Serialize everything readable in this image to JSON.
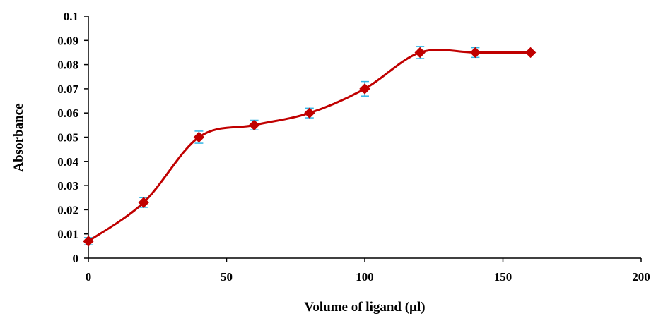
{
  "chart_data": {
    "type": "line",
    "title": "",
    "xlabel": "Volume of ligand (µl)",
    "ylabel": "Absorbance",
    "xlim": [
      0,
      200
    ],
    "ylim": [
      0,
      0.1
    ],
    "x_ticks": [
      "0",
      "50",
      "100",
      "150",
      "200"
    ],
    "y_ticks": [
      "0",
      "0.01",
      "0.02",
      "0.03",
      "0.04",
      "0.05",
      "0.06",
      "0.07",
      "0.08",
      "0.09",
      "0.1"
    ],
    "grid": false,
    "legend": "none",
    "smooth": true,
    "series": [
      {
        "color": "#c00000",
        "marker": "diamond",
        "x": [
          0,
          20,
          40,
          60,
          80,
          100,
          120,
          140,
          160
        ],
        "y": [
          0.007,
          0.023,
          0.05,
          0.055,
          0.06,
          0.07,
          0.085,
          0.085,
          0.085
        ],
        "error": [
          0.0015,
          0.002,
          0.0025,
          0.002,
          0.002,
          0.003,
          0.0025,
          0.002,
          0.0
        ]
      }
    ],
    "error_bar_color": "#33b5e5"
  }
}
